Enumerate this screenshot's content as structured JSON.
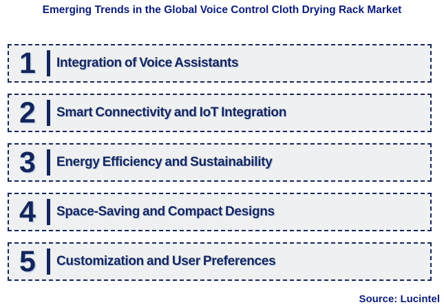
{
  "title": "Emerging Trends in the Global Voice Control Cloth Drying Rack Market",
  "trends": [
    {
      "number": "1",
      "label": "Integration of Voice Assistants"
    },
    {
      "number": "2",
      "label": "Smart Connectivity and IoT Integration"
    },
    {
      "number": "3",
      "label": "Energy Efficiency and Sustainability"
    },
    {
      "number": "4",
      "label": "Space-Saving and Compact Designs"
    },
    {
      "number": "5",
      "label": "Customization and User Preferences"
    }
  ],
  "source": "Source: Lucintel",
  "colors": {
    "title_text": "#0a1b7b",
    "item_text": "#16265e",
    "number_text": "#13265b",
    "row_border": "#13265b",
    "row_background": "#eff0f1",
    "page_background": "#ffffff"
  }
}
